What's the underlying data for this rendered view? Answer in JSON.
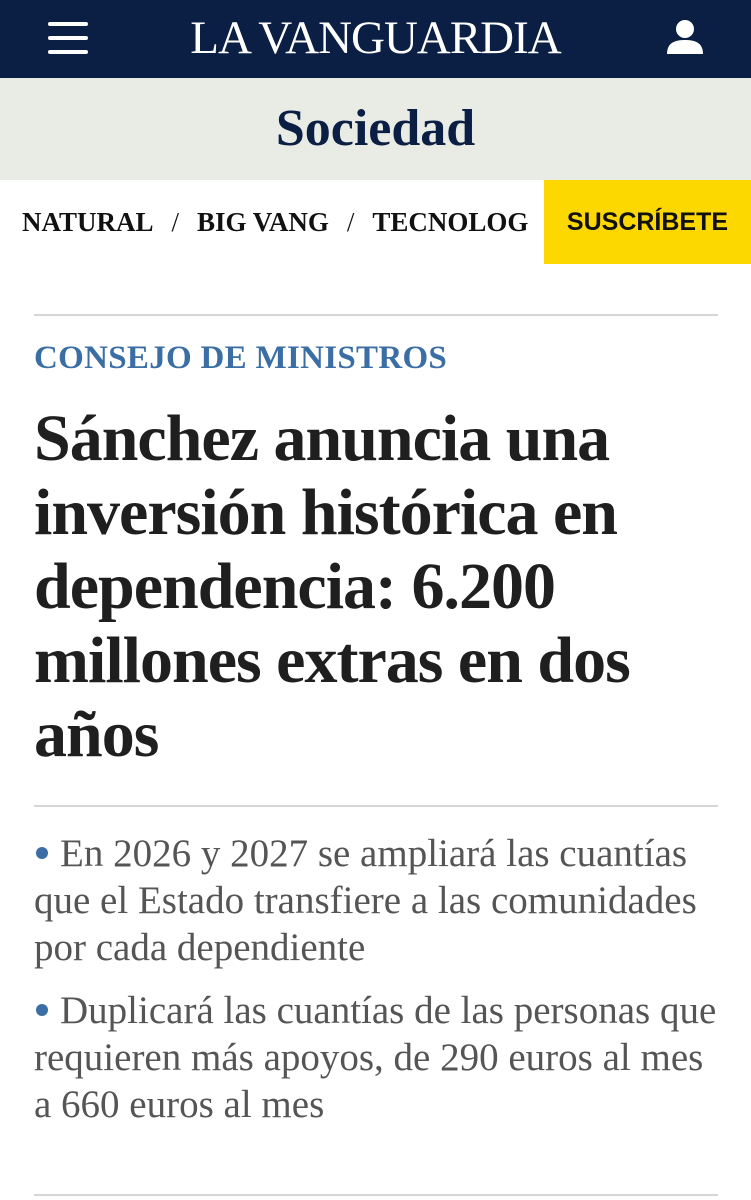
{
  "header": {
    "logo": "LA VANGUARDIA"
  },
  "section": {
    "title": "Sociedad"
  },
  "nav": {
    "items": [
      "NATURAL",
      "BIG VANG",
      "TECNOLOG"
    ],
    "separator": "/",
    "subscribe": "SUSCRÍBETE"
  },
  "article": {
    "kicker": "CONSEJO DE MINISTROS",
    "headline": "Sánchez anuncia una inversión histórica en dependencia: 6.200 millones extras en dos años",
    "bullets": [
      "En 2026 y 2027 se ampliará las cuantías que el Estado transfiere a las comunidades por cada dependiente",
      "Duplicará las cuantías de las personas que requieren más apoyos, de 290 euros al mes a 660 euros al mes"
    ]
  }
}
